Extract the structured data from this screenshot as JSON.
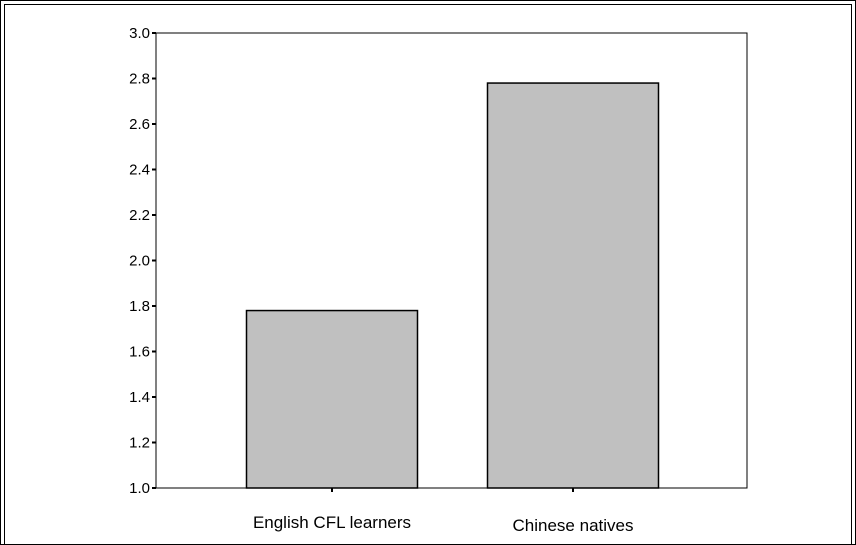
{
  "chart_data": {
    "type": "bar",
    "categories": [
      "English CFL learners",
      "Chinese natives"
    ],
    "values": [
      1.78,
      2.78
    ],
    "xlabel": "",
    "ylabel": "",
    "ylim": [
      1.0,
      3.0
    ],
    "yticks": [
      "1.0",
      "1.2",
      "1.4",
      "1.6",
      "1.8",
      "2.0",
      "2.2",
      "2.4",
      "2.6",
      "2.8",
      "3.0"
    ],
    "grid": false,
    "colors": {
      "bar_fill": "#c0c0c0",
      "bar_stroke": "#000000",
      "axis": "#000000"
    }
  }
}
